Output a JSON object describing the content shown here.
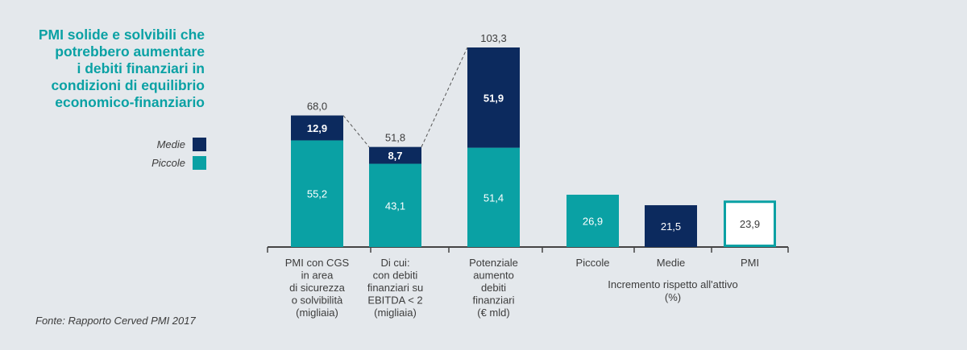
{
  "title_lines": [
    "PMI solide e solvibili che",
    "potrebbero aumentare",
    "i debiti finanziari in",
    "condizioni di equilibrio",
    "economico-finanziario"
  ],
  "legend": [
    {
      "label": "Medie",
      "color": "#0c2a5e"
    },
    {
      "label": "Piccole",
      "color": "#0aa1a4"
    }
  ],
  "source": "Fonte: Rapporto Cerved PMI 2017",
  "chart_data": [
    {
      "type": "bar",
      "stacked": true,
      "categories": [
        [
          "PMI con CGS",
          "in area",
          "di sicurezza",
          "o solvibilità",
          "(migliaia)"
        ],
        [
          "Di cui:",
          "con debiti",
          "finanziari su",
          "EBITDA < 2",
          "(migliaia)"
        ],
        [
          "Potenziale",
          "aumento",
          "debiti",
          "finanziari",
          "(€ mld)"
        ]
      ],
      "series": [
        {
          "name": "Piccole",
          "values": [
            55.2,
            43.1,
            51.4
          ],
          "labels": [
            "55,2",
            "43,1",
            "51,4"
          ]
        },
        {
          "name": "Medie",
          "values": [
            12.9,
            8.7,
            51.9
          ],
          "labels": [
            "12,9",
            "8,7",
            "51,9"
          ]
        }
      ],
      "totals": [
        68.0,
        51.8,
        103.3
      ],
      "total_labels": [
        "68,0",
        "51,8",
        "103,3"
      ]
    },
    {
      "type": "bar",
      "categories": [
        "Piccole",
        "Medie",
        "PMI"
      ],
      "values": [
        26.9,
        21.5,
        23.9
      ],
      "labels": [
        "26,9",
        "21,5",
        "23,9"
      ],
      "styles": [
        "#0aa1a4",
        "#0c2a5e",
        "outline"
      ],
      "xlabel_lines": [
        "Incremento rispetto all'attivo",
        "(%)"
      ]
    }
  ],
  "colors": {
    "teal": "#0aa1a4",
    "navy": "#0c2a5e",
    "axis": "#444444",
    "text": "#3c3c3c"
  }
}
